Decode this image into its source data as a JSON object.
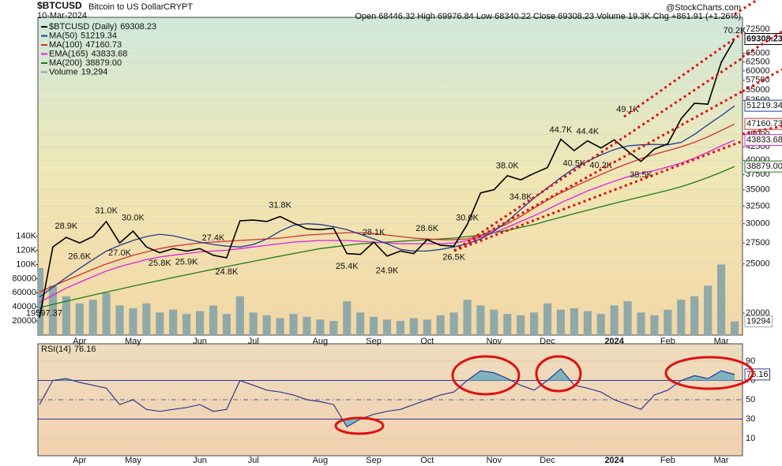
{
  "header": {
    "symbol": "$BTCUSD",
    "name": "Bitcoin to US Dollar",
    "exchange": "CRYPT",
    "date": "10-Mar-2024",
    "quote": "Open 68446.32  High 69976.84  Low 68340.22  Close 69308.23  Volume 19.3K  Chg +861.91 (+1.26%)",
    "credit": "@StockCharts.com"
  },
  "chart_data": [
    {
      "type": "line",
      "log_scale": true,
      "grid": true,
      "categories": [
        null,
        null,
        null,
        "Apr",
        null,
        null,
        null,
        "May",
        null,
        null,
        null,
        null,
        "Jun",
        null,
        null,
        null,
        "Jul",
        null,
        null,
        null,
        null,
        "Aug",
        null,
        null,
        null,
        "Sep",
        null,
        null,
        null,
        "Oct",
        null,
        null,
        null,
        null,
        "Nov",
        null,
        null,
        null,
        "Dec",
        null,
        null,
        null,
        null,
        "2024",
        null,
        null,
        null,
        "Feb",
        null,
        null,
        null,
        "Mar",
        null
      ],
      "ylim": [
        18100,
        76500
      ],
      "yticks": [
        20000,
        25000,
        27500,
        30000,
        32500,
        35000,
        37500,
        40000,
        42500,
        45000,
        52500,
        55000,
        57500,
        60000,
        62500,
        65000,
        72500
      ],
      "y2lim": [
        0,
        450000
      ],
      "y2ticks": [
        {
          "value": 20000,
          "label": "20000"
        },
        {
          "value": 40000,
          "label": "40000"
        },
        {
          "value": 60000,
          "label": "60000"
        },
        {
          "value": 80000,
          "label": "80000"
        },
        {
          "value": 100000,
          "label": "100K"
        },
        {
          "value": 120000,
          "label": "120K"
        },
        {
          "value": 140000,
          "label": "140K"
        }
      ],
      "series": [
        {
          "name": "Volume",
          "type": "bar",
          "axis": "y2",
          "color": "#8fa9a8",
          "values": [
            95000,
            70000,
            55000,
            45000,
            50000,
            60000,
            42000,
            38000,
            45000,
            32000,
            36000,
            30000,
            34000,
            42000,
            30000,
            55000,
            32000,
            28000,
            24000,
            30000,
            26000,
            22000,
            20000,
            48000,
            32000,
            26000,
            22000,
            20000,
            24000,
            22000,
            28000,
            32000,
            50000,
            42000,
            36000,
            30000,
            28000,
            32000,
            45000,
            36000,
            38000,
            34000,
            30000,
            42000,
            48000,
            32000,
            28000,
            36000,
            50000,
            55000,
            70000,
            100000,
            19294
          ],
          "value_labels": [
            null,
            null,
            null,
            null,
            null,
            null,
            null,
            null,
            null,
            null,
            null,
            null,
            null,
            null,
            null,
            null,
            null,
            null,
            null,
            null,
            null,
            null,
            null,
            null,
            null,
            null,
            null,
            null,
            null,
            null,
            null,
            null,
            null,
            null,
            null,
            null,
            null,
            null,
            null,
            null,
            null,
            null,
            null,
            null,
            null,
            null,
            null,
            null,
            null,
            null,
            null,
            null,
            "19,294"
          ]
        },
        {
          "name": "MA(200)",
          "color": "#1e7a1e",
          "values": [
            20500,
            20800,
            21100,
            21400,
            21700,
            22000,
            22300,
            22600,
            22900,
            23200,
            23500,
            23800,
            24100,
            24400,
            24700,
            25000,
            25300,
            25600,
            25900,
            26200,
            26500,
            26800,
            27000,
            27200,
            27400,
            27500,
            27600,
            27700,
            27800,
            27900,
            28000,
            28100,
            28300,
            28500,
            28800,
            29100,
            29500,
            29900,
            30400,
            30900,
            31400,
            31900,
            32400,
            32900,
            33400,
            33900,
            34400,
            34900,
            35500,
            36200,
            37000,
            37900,
            38879
          ],
          "value_labels": [
            null,
            null,
            null,
            null,
            null,
            null,
            null,
            null,
            null,
            null,
            null,
            null,
            null,
            null,
            null,
            null,
            null,
            null,
            null,
            null,
            null,
            null,
            null,
            null,
            null,
            null,
            null,
            null,
            null,
            null,
            null,
            null,
            null,
            null,
            null,
            null,
            null,
            null,
            null,
            null,
            null,
            null,
            null,
            null,
            null,
            null,
            null,
            null,
            null,
            null,
            null,
            null,
            "38879.00"
          ]
        },
        {
          "name": "EMA(165)",
          "color": "#e020e0",
          "values": [
            21000,
            21700,
            22400,
            23000,
            23600,
            24200,
            24700,
            25100,
            25500,
            25800,
            26000,
            26200,
            26400,
            26500,
            26600,
            26800,
            27000,
            27200,
            27400,
            27600,
            27700,
            27800,
            27800,
            27800,
            27700,
            27600,
            27500,
            27400,
            27400,
            27400,
            27400,
            27500,
            27800,
            28200,
            28800,
            29500,
            30300,
            31100,
            32000,
            33000,
            33900,
            34800,
            35600,
            36400,
            37100,
            37700,
            38200,
            38800,
            39500,
            40400,
            41500,
            42700,
            43833.68
          ]
        },
        {
          "name": "MA(100)",
          "color": "#d0312d",
          "values": [
            22000,
            22600,
            23200,
            23800,
            24400,
            25000,
            25500,
            26000,
            26400,
            26800,
            27100,
            27300,
            27500,
            27600,
            27700,
            27800,
            27900,
            28000,
            28100,
            28300,
            28500,
            28600,
            28700,
            28800,
            28800,
            28700,
            28500,
            28300,
            28100,
            28000,
            27900,
            27900,
            28000,
            28400,
            29200,
            30000,
            31000,
            32200,
            33400,
            34500,
            35500,
            36500,
            37500,
            38500,
            39400,
            40300,
            41100,
            41800,
            42500,
            43400,
            44500,
            45800,
            47160.73
          ]
        },
        {
          "name": "MA(50)",
          "color": "#1f3a93",
          "values": [
            21500,
            22500,
            23500,
            24500,
            25500,
            26500,
            27200,
            27800,
            28300,
            28600,
            28400,
            28000,
            27600,
            27300,
            27100,
            27000,
            27300,
            28000,
            29000,
            29800,
            30000,
            29900,
            29600,
            29200,
            28600,
            28000,
            27400,
            26700,
            26500,
            26500,
            26700,
            27000,
            27400,
            28000,
            29000,
            30300,
            32000,
            33700,
            35300,
            37000,
            38600,
            39800,
            41000,
            42000,
            42700,
            42900,
            43000,
            42900,
            43400,
            45000,
            47000,
            49000,
            51219.34
          ]
        },
        {
          "name": "$BTCUSD (Daily)",
          "color": "#000000",
          "values": [
            19597.37,
            27000,
            28200,
            27500,
            28300,
            30300,
            27500,
            29000,
            27000,
            26300,
            26800,
            26500,
            26800,
            26000,
            25700,
            30400,
            30500,
            30300,
            31000,
            30100,
            29300,
            29200,
            29400,
            26200,
            26100,
            27600,
            25900,
            26500,
            26200,
            27900,
            27200,
            27100,
            29900,
            34500,
            35000,
            37300,
            36600,
            37700,
            38700,
            44000,
            41800,
            43700,
            42300,
            43900,
            41700,
            39800,
            42100,
            43100,
            48300,
            51800,
            51600,
            62400,
            69308.23
          ]
        }
      ],
      "peaks": {
        "values": [
          null,
          null,
          28900,
          26600,
          null,
          31000,
          27000,
          30000,
          null,
          25800,
          null,
          25900,
          null,
          27400,
          24800,
          null,
          null,
          null,
          31800,
          null,
          null,
          null,
          null,
          25400,
          null,
          28100,
          24900,
          null,
          null,
          28600,
          null,
          26500,
          30000,
          null,
          null,
          38000,
          34800,
          null,
          null,
          44700,
          40500,
          44400,
          40200,
          null,
          49100,
          38500,
          null,
          null,
          null,
          null,
          null,
          null,
          70200
        ],
        "value_labels": [
          null,
          null,
          "28.9K",
          "26.6K",
          null,
          "31.0K",
          "27.0K",
          "30.0K",
          null,
          "25.8K",
          null,
          "25.9K",
          null,
          "27.4K",
          "24.8K",
          null,
          null,
          null,
          "31.8K",
          null,
          null,
          null,
          null,
          "25.4K",
          null,
          "28.1K",
          "24.9K",
          null,
          null,
          "28.6K",
          null,
          "26.5K",
          "30.0K",
          null,
          null,
          "38.0K",
          "34.8K",
          null,
          null,
          "44.7K",
          "40.5K",
          "44.4K",
          "40.2K",
          null,
          "49.1K",
          "38.5K",
          null,
          null,
          null,
          null,
          null,
          null,
          "70.2K"
        ]
      }
    },
    {
      "type": "line",
      "grid": true,
      "ylim": [
        -8,
        108
      ],
      "yticks": [
        10,
        30,
        50,
        70,
        90
      ],
      "series": [
        {
          "name": "RSI(14)",
          "color": "#2b3a8f",
          "values": [
            45,
            70,
            72,
            68,
            65,
            62,
            45,
            50,
            40,
            38,
            40,
            42,
            45,
            38,
            40,
            70,
            65,
            60,
            58,
            55,
            50,
            48,
            45,
            22,
            30,
            35,
            38,
            40,
            45,
            50,
            55,
            58,
            70,
            80,
            78,
            72,
            65,
            60,
            70,
            82,
            65,
            62,
            58,
            50,
            45,
            40,
            55,
            60,
            70,
            75,
            72,
            80,
            76.16
          ]
        }
      ]
    }
  ]
}
